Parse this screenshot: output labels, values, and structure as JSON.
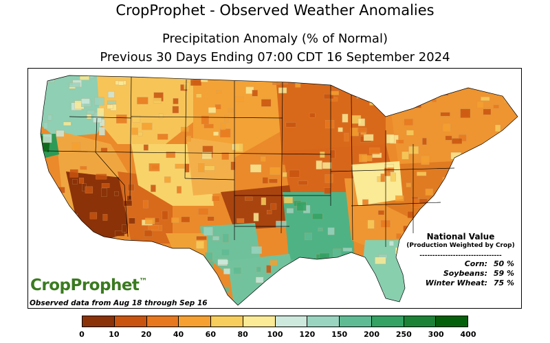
{
  "header": {
    "title": "CropProphet - Observed Weather Anomalies",
    "subtitle": "Precipitation Anomaly (% of Normal)",
    "period": "Previous 30 Days Ending 07:00 CDT 16 September 2024"
  },
  "national_value": {
    "title": "National Value",
    "subtitle": "(Production Weighted by Crop)",
    "divider": "--------------------------------",
    "rows": [
      {
        "crop": "Corn:",
        "value": "50 %"
      },
      {
        "crop": "Soybeans:",
        "value": "59 %"
      },
      {
        "crop": "Winter Wheat:",
        "value": "75 %"
      }
    ]
  },
  "logo": {
    "text": "CropProphet",
    "tm": "™"
  },
  "footer_note": "Observed data from Aug 18 through Sep 16",
  "legend": {
    "colors": [
      "#8b3208",
      "#c8540f",
      "#e8781e",
      "#f5a030",
      "#f7cd5c",
      "#fbea96",
      "#cde8dc",
      "#99d4c0",
      "#5fbb93",
      "#33a263",
      "#1c8336",
      "#05600b"
    ],
    "ticks": [
      "0",
      "10",
      "20",
      "40",
      "60",
      "80",
      "100",
      "120",
      "150",
      "200",
      "250",
      "300",
      "400"
    ]
  },
  "map": {
    "regions": [
      {
        "name": "pacific-northwest",
        "anomaly_class": 7
      },
      {
        "name": "northern-california-coast",
        "anomaly_class": 10
      },
      {
        "name": "southern-california",
        "anomaly_class": 0
      },
      {
        "name": "arizona",
        "anomaly_class": 2
      },
      {
        "name": "northern-rockies",
        "anomaly_class": 5
      },
      {
        "name": "great-plains-north",
        "anomaly_class": 3
      },
      {
        "name": "oklahoma-texas-panhandle",
        "anomaly_class": 1
      },
      {
        "name": "corn-belt",
        "anomaly_class": 2
      },
      {
        "name": "great-lakes",
        "anomaly_class": 2
      },
      {
        "name": "lower-mississippi-valley",
        "anomaly_class": 8
      },
      {
        "name": "central-texas",
        "anomaly_class": 8
      },
      {
        "name": "southeast",
        "anomaly_class": 3
      },
      {
        "name": "florida",
        "anomaly_class": 7
      },
      {
        "name": "northeast",
        "anomaly_class": 3
      }
    ]
  }
}
